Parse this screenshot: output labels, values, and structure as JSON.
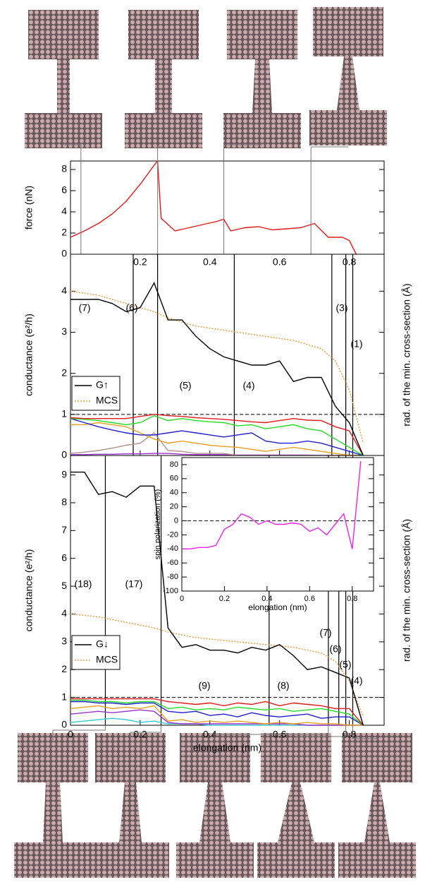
{
  "chart_data": [
    {
      "type": "line",
      "ylabel": "force (nN)",
      "xlim": [
        0,
        0.9
      ],
      "ylim": [
        0,
        8.8
      ],
      "yticks": [
        0,
        2,
        4,
        6,
        8
      ],
      "snapshots": [
        0.03,
        0.25,
        0.44,
        0.69
      ],
      "x": [
        0,
        0.04,
        0.08,
        0.12,
        0.16,
        0.2,
        0.24,
        0.25,
        0.26,
        0.3,
        0.34,
        0.38,
        0.42,
        0.44,
        0.46,
        0.5,
        0.54,
        0.58,
        0.62,
        0.66,
        0.7,
        0.74,
        0.78,
        0.8,
        0.82
      ],
      "series": [
        {
          "color": "#e31a1c",
          "values": [
            1.6,
            2.2,
            2.9,
            3.8,
            5.0,
            6.6,
            8.4,
            8.8,
            3.4,
            2.2,
            2.5,
            2.8,
            3.1,
            3.3,
            2.2,
            2.5,
            2.6,
            2.3,
            2.4,
            2.5,
            2.9,
            1.6,
            1.6,
            1.3,
            0
          ]
        }
      ]
    },
    {
      "type": "line",
      "ylabel": "conductance (e²/h)",
      "y2label": "rad. of the min. cross-section (Å)",
      "xlim": [
        0,
        0.9
      ],
      "ylim": [
        0,
        4.9
      ],
      "yticks": [
        0,
        1,
        2,
        3,
        4
      ],
      "xticks": [
        0.2,
        0.4,
        0.6,
        0.8
      ],
      "hline": 1,
      "transitions": [
        0.18,
        0.25,
        0.47,
        0.75,
        0.79,
        0.81
      ],
      "annotations": [
        "(7)",
        "(6)",
        "(5)",
        "(4)",
        "(3)",
        "(1)"
      ],
      "x": [
        0,
        0.04,
        0.08,
        0.12,
        0.16,
        0.2,
        0.24,
        0.28,
        0.32,
        0.36,
        0.4,
        0.44,
        0.48,
        0.52,
        0.56,
        0.6,
        0.64,
        0.68,
        0.72,
        0.76,
        0.8,
        0.84
      ],
      "series": [
        {
          "name": "G↑",
          "color": "#000000",
          "values": [
            3.8,
            3.8,
            3.8,
            3.7,
            3.5,
            3.6,
            4.2,
            3.3,
            3.3,
            2.9,
            2.6,
            2.4,
            2.3,
            2.2,
            2.2,
            2.3,
            1.8,
            1.9,
            1.9,
            1.2,
            0.8,
            0
          ]
        },
        {
          "name": "MCS",
          "color": "#e8a040",
          "style": "dotted",
          "values": [
            4.0,
            3.95,
            3.9,
            3.8,
            3.7,
            3.6,
            3.5,
            3.35,
            3.25,
            3.15,
            3.1,
            3.05,
            3.0,
            2.95,
            2.9,
            2.85,
            2.8,
            2.7,
            2.6,
            2.3,
            1.6,
            0.3
          ]
        },
        {
          "color": "#e31a1c",
          "values": [
            0.92,
            0.9,
            0.9,
            0.9,
            0.9,
            0.95,
            1.0,
            0.97,
            0.95,
            0.92,
            0.9,
            0.88,
            0.85,
            0.82,
            0.8,
            0.85,
            0.9,
            0.86,
            0.85,
            0.7,
            0.6,
            0
          ]
        },
        {
          "color": "#22dd22",
          "values": [
            0.9,
            0.88,
            0.85,
            0.8,
            0.75,
            0.8,
            0.97,
            0.85,
            0.9,
            0.85,
            0.82,
            0.8,
            0.72,
            0.75,
            0.65,
            0.7,
            0.75,
            0.65,
            0.6,
            0.4,
            0.2,
            0
          ]
        },
        {
          "color": "#1f1fcf",
          "values": [
            0.9,
            0.8,
            0.7,
            0.62,
            0.55,
            0.5,
            0.5,
            0.55,
            0.6,
            0.55,
            0.5,
            0.45,
            0.5,
            0.55,
            0.35,
            0.3,
            0.3,
            0.35,
            0.3,
            0.2,
            0.1,
            0
          ]
        },
        {
          "color": "#e8a020",
          "values": [
            0.75,
            0.75,
            0.8,
            0.75,
            0.7,
            0.55,
            0.4,
            0.3,
            0.35,
            0.3,
            0.25,
            0.22,
            0.2,
            0.15,
            0.1,
            0.15,
            0.2,
            0.15,
            0.1,
            0.05,
            0,
            0
          ]
        },
        {
          "color": "#b8908a",
          "values": [
            0.05,
            0.08,
            0.12,
            0.18,
            0.25,
            0.3,
            0.55,
            0.12,
            0.1,
            0.05,
            0.05,
            0.05,
            0,
            0,
            0,
            0,
            0,
            0,
            0,
            0,
            0,
            0
          ]
        },
        {
          "color": "#9932cc",
          "values": [
            0.02,
            0.02,
            0.03,
            0.03,
            0.04,
            0.04,
            0.05,
            0.05,
            0.03,
            0.02,
            0.02,
            0.02,
            0.01,
            0.01,
            0.01,
            0.01,
            0.01,
            0.01,
            0,
            0,
            0,
            0
          ]
        }
      ]
    },
    {
      "type": "line",
      "ylabel": "conductance (e²/h)",
      "y2label": "rad. of the min. cross-section (Å)",
      "xlabel": "elongation (nm)",
      "xlim": [
        0,
        0.9
      ],
      "ylim": [
        0,
        9.7
      ],
      "yticks": [
        0,
        1,
        2,
        3,
        4,
        5,
        6,
        7,
        8,
        9
      ],
      "xticks": [
        0,
        0.2,
        0.4,
        0.6,
        0.8
      ],
      "hline": 1,
      "transitions": [
        0.1,
        0.26,
        0.57,
        0.74,
        0.77,
        0.79,
        0.81
      ],
      "snapshots": [
        0.1,
        0.26,
        0.74,
        0.79,
        0.81
      ],
      "annotations": [
        "(18)",
        "(17)",
        "(9)",
        "(8)",
        "(7)",
        "(6)",
        "(5)",
        "(4)"
      ],
      "x": [
        0,
        0.04,
        0.08,
        0.12,
        0.16,
        0.2,
        0.24,
        0.28,
        0.32,
        0.36,
        0.4,
        0.44,
        0.48,
        0.52,
        0.56,
        0.6,
        0.64,
        0.68,
        0.72,
        0.76,
        0.8,
        0.84
      ],
      "series": [
        {
          "name": "G↓",
          "color": "#000000",
          "values": [
            9.1,
            9.1,
            8.3,
            8.4,
            8.2,
            8.6,
            8.6,
            3.5,
            2.8,
            2.9,
            2.7,
            2.7,
            2.6,
            2.8,
            2.7,
            2.9,
            2.5,
            2.0,
            2.1,
            1.9,
            1.7,
            0
          ]
        },
        {
          "name": "MCS",
          "color": "#e8a040",
          "style": "dotted",
          "values": [
            4.0,
            3.95,
            3.9,
            3.8,
            3.7,
            3.6,
            3.5,
            3.35,
            3.25,
            3.15,
            3.1,
            3.05,
            3.0,
            2.95,
            2.9,
            2.85,
            2.8,
            2.7,
            2.6,
            2.3,
            1.6,
            0.3
          ]
        },
        {
          "color": "#e31a1c",
          "values": [
            0.95,
            0.95,
            0.95,
            0.95,
            0.95,
            0.95,
            0.95,
            0.85,
            0.8,
            0.75,
            0.8,
            0.7,
            0.8,
            0.75,
            0.85,
            0.7,
            0.8,
            0.75,
            0.7,
            0.6,
            0.6,
            0
          ]
        },
        {
          "color": "#22dd22",
          "values": [
            0.9,
            0.9,
            0.85,
            0.85,
            0.8,
            0.85,
            0.85,
            0.6,
            0.65,
            0.55,
            0.6,
            0.55,
            0.65,
            0.6,
            0.55,
            0.6,
            0.5,
            0.55,
            0.6,
            0.5,
            0.4,
            0
          ]
        },
        {
          "color": "#1f1fcf",
          "values": [
            0.85,
            0.85,
            0.8,
            0.8,
            0.75,
            0.8,
            0.8,
            0.5,
            0.45,
            0.5,
            0.35,
            0.4,
            0.3,
            0.45,
            0.35,
            0.3,
            0.35,
            0.4,
            0.25,
            0.3,
            0.3,
            0
          ]
        },
        {
          "color": "#e8a020",
          "values": [
            0.6,
            0.65,
            0.7,
            0.6,
            0.65,
            0.6,
            0.7,
            0.15,
            0.2,
            0.1,
            0.15,
            0.1,
            0.15,
            0.1,
            0.05,
            0.1,
            0.05,
            0.1,
            0.05,
            0.05,
            0,
            0
          ]
        },
        {
          "color": "#9932cc",
          "values": [
            0.4,
            0.45,
            0.5,
            0.45,
            0.5,
            0.55,
            0.5,
            0.1,
            0.05,
            0.05,
            0.05,
            0.05,
            0.05,
            0.05,
            0.05,
            0.05,
            0.05,
            0,
            0,
            0,
            0,
            0
          ]
        },
        {
          "color": "#33cccc",
          "values": [
            0.1,
            0.15,
            0.2,
            0.25,
            0.2,
            0.1,
            0.15,
            0.05,
            0.05,
            0.05,
            0,
            0,
            0,
            0,
            0,
            0,
            0,
            0,
            0,
            0,
            0,
            0
          ]
        }
      ]
    },
    {
      "type": "line",
      "ylabel": "spin polarization (%)",
      "xlabel": "elongation (nm)",
      "xlim": [
        0,
        0.9
      ],
      "ylim": [
        -100,
        90
      ],
      "yticks": [
        -100,
        -80,
        -60,
        -40,
        -20,
        0,
        20,
        40,
        60,
        80
      ],
      "xticks": [
        0,
        0.2,
        0.4,
        0.6,
        0.8
      ],
      "hline": 0,
      "x": [
        0,
        0.04,
        0.08,
        0.12,
        0.16,
        0.2,
        0.24,
        0.28,
        0.32,
        0.36,
        0.4,
        0.44,
        0.48,
        0.52,
        0.56,
        0.6,
        0.64,
        0.68,
        0.72,
        0.76,
        0.8,
        0.84
      ],
      "series": [
        {
          "color": "#ee22ee",
          "values": [
            -40,
            -40,
            -38,
            -38,
            -35,
            -12,
            -5,
            10,
            5,
            -5,
            0,
            -5,
            -5,
            -3,
            -5,
            -15,
            -10,
            -20,
            -5,
            10,
            -40,
            85
          ]
        }
      ]
    }
  ]
}
